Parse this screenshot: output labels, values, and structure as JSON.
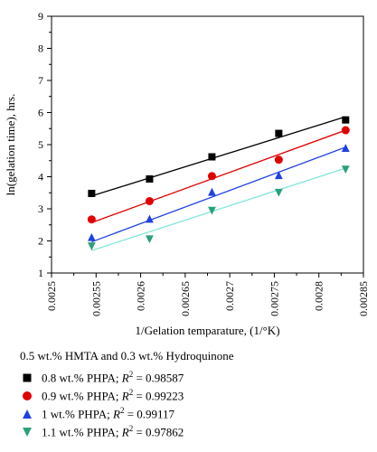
{
  "chart_data": {
    "type": "scatter",
    "xlabel": "1/Gelation temparature, (1/°K)",
    "ylabel": "ln(gelation time), hrs.",
    "xlim": [
      0.0025,
      0.00285
    ],
    "ylim": [
      1,
      9
    ],
    "xticks": [
      "0.0025",
      "0.00255",
      "0.0026",
      "0.00265",
      "0.0027",
      "0.00275",
      "0.0028",
      "0.00285"
    ],
    "yticks": [
      "1",
      "2",
      "3",
      "4",
      "5",
      "6",
      "7",
      "8",
      "9"
    ],
    "caption": "0.5 wt.% HMTA and 0.3 wt.% Hydroquinone",
    "series": [
      {
        "name": "0.8 wt.% PHPA; ",
        "r2_label": "R",
        "r2_value": "2",
        "r2_text": " = 0.98587",
        "color": "#000000",
        "marker": "square",
        "x": [
          0.002545,
          0.00261,
          0.00268,
          0.002755,
          0.00283
        ],
        "y": [
          3.48,
          3.93,
          4.62,
          5.35,
          5.77
        ],
        "fit": {
          "x": [
            0.002545,
            0.00283
          ],
          "y": [
            3.4,
            5.87
          ]
        }
      },
      {
        "name": "0.9 wt.% PHPA; ",
        "r2_label": "R",
        "r2_value": "2",
        "r2_text": " = 0.99223",
        "color": "#e00000",
        "marker": "circle",
        "x": [
          0.002545,
          0.00261,
          0.00268,
          0.002755,
          0.00283
        ],
        "y": [
          2.67,
          3.24,
          4.02,
          4.53,
          5.45
        ],
        "fit": {
          "x": [
            0.002545,
            0.00283
          ],
          "y": [
            2.57,
            5.45
          ]
        }
      },
      {
        "name": "1 wt.% PHPA; ",
        "r2_label": "R",
        "r2_value": "2",
        "r2_text": " = 0.99117",
        "color": "#2040e0",
        "marker": "triangle-up",
        "x": [
          0.002545,
          0.00261,
          0.00268,
          0.002755,
          0.00283
        ],
        "y": [
          2.12,
          2.69,
          3.53,
          4.05,
          4.9
        ],
        "fit": {
          "x": [
            0.002545,
            0.00283
          ],
          "y": [
            1.97,
            4.92
          ]
        }
      },
      {
        "name": "1.1 wt.% PHPA; ",
        "r2_label": "R",
        "r2_value": "2",
        "r2_text": " = 0.97862",
        "color": "#2aa07a",
        "marker": "triangle-down",
        "x": [
          0.002545,
          0.00261,
          0.00268,
          0.002755,
          0.00283
        ],
        "y": [
          1.83,
          2.05,
          2.94,
          3.5,
          4.22
        ],
        "fit": {
          "x": [
            0.002545,
            0.00283
          ],
          "y": [
            1.7,
            4.27
          ]
        },
        "fit_color": "#7fe6d8"
      }
    ]
  }
}
